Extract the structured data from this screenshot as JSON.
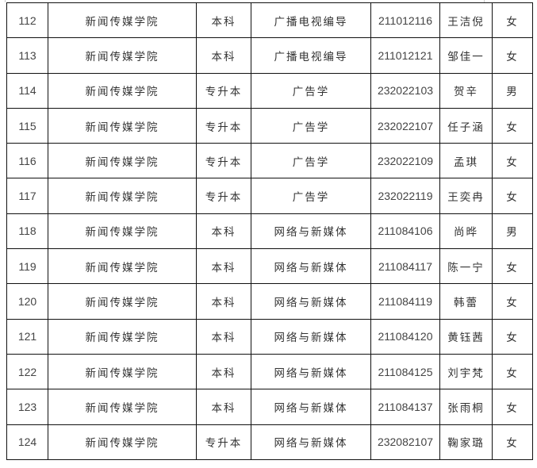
{
  "rows": [
    {
      "no": "112",
      "college": "新闻传媒学院",
      "level": "本科",
      "major": "广播电视编导",
      "id": "211012116",
      "name": "王洁倪",
      "gender": "女"
    },
    {
      "no": "113",
      "college": "新闻传媒学院",
      "level": "本科",
      "major": "广播电视编导",
      "id": "211012121",
      "name": "邹佳一",
      "gender": "女"
    },
    {
      "no": "114",
      "college": "新闻传媒学院",
      "level": "专升本",
      "major": "广告学",
      "id": "232022103",
      "name": "贺辛",
      "gender": "男"
    },
    {
      "no": "115",
      "college": "新闻传媒学院",
      "level": "专升本",
      "major": "广告学",
      "id": "232022107",
      "name": "任子涵",
      "gender": "女"
    },
    {
      "no": "116",
      "college": "新闻传媒学院",
      "level": "专升本",
      "major": "广告学",
      "id": "232022109",
      "name": "孟琪",
      "gender": "女"
    },
    {
      "no": "117",
      "college": "新闻传媒学院",
      "level": "专升本",
      "major": "广告学",
      "id": "232022119",
      "name": "王奕冉",
      "gender": "女"
    },
    {
      "no": "118",
      "college": "新闻传媒学院",
      "level": "本科",
      "major": "网络与新媒体",
      "id": "211084106",
      "name": "尚晔",
      "gender": "男"
    },
    {
      "no": "119",
      "college": "新闻传媒学院",
      "level": "本科",
      "major": "网络与新媒体",
      "id": "211084117",
      "name": "陈一宁",
      "gender": "女"
    },
    {
      "no": "120",
      "college": "新闻传媒学院",
      "level": "本科",
      "major": "网络与新媒体",
      "id": "211084119",
      "name": "韩蕾",
      "gender": "女"
    },
    {
      "no": "121",
      "college": "新闻传媒学院",
      "level": "本科",
      "major": "网络与新媒体",
      "id": "211084120",
      "name": "黄钰茜",
      "gender": "女"
    },
    {
      "no": "122",
      "college": "新闻传媒学院",
      "level": "本科",
      "major": "网络与新媒体",
      "id": "211084125",
      "name": "刘宇梵",
      "gender": "女"
    },
    {
      "no": "123",
      "college": "新闻传媒学院",
      "level": "本科",
      "major": "网络与新媒体",
      "id": "211084137",
      "name": "张雨桐",
      "gender": "女"
    },
    {
      "no": "124",
      "college": "新闻传媒学院",
      "level": "专升本",
      "major": "网络与新媒体",
      "id": "232082107",
      "name": "鞠家璐",
      "gender": "女"
    }
  ]
}
